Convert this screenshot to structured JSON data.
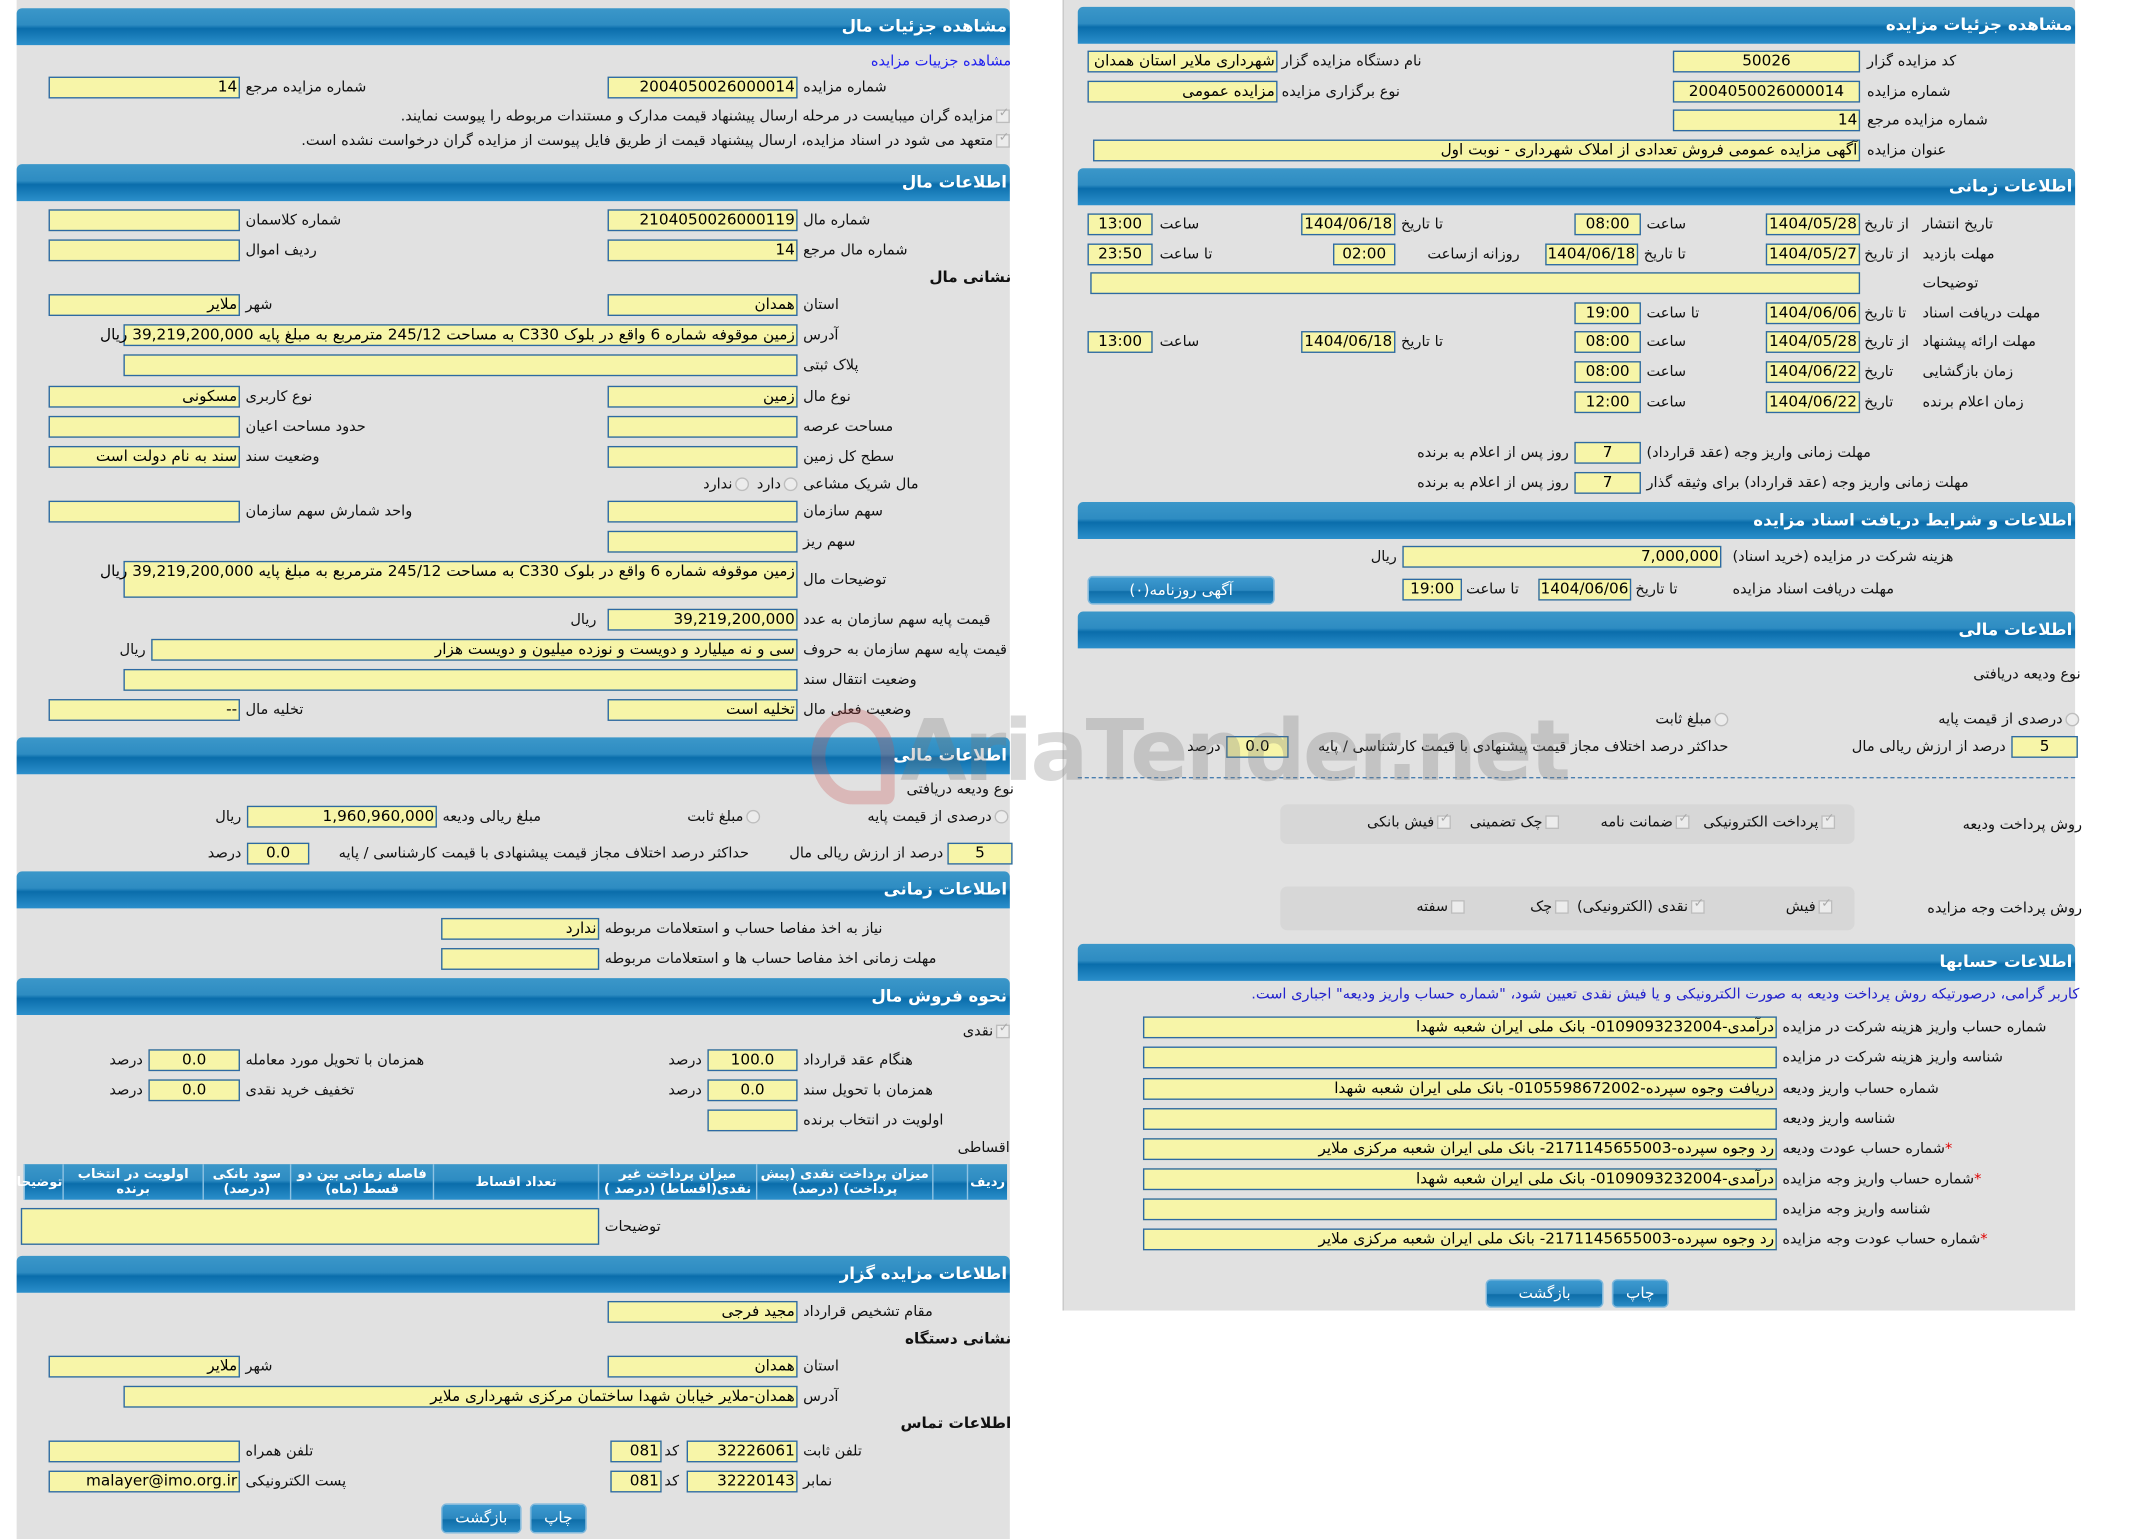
{
  "brand_watermark": "AriaTender.net",
  "colors": {
    "header": "#1a7fbf",
    "field": "#f7f5a8",
    "panel": "#e1e1e1",
    "link": "#2222ee",
    "required": "#e00000"
  },
  "left": {
    "title": "مشاهده جزئیات مال",
    "auction_link": "مشاهده جزییات مزایده",
    "header": {
      "auction_no": {
        "label": "شماره مزایده",
        "value": "2004050026000014"
      },
      "ref_no": {
        "label": "شماره مزایده مرجع",
        "value": "14"
      },
      "note1": "مزایده گران میبایست در مرحله ارسال پیشنهاد قیمت مدارک و مستندات مربوطه را پیوست نمایند.",
      "note2": "متعهد می شود در اسناد مزایده، ارسال پیشنهاد قیمت از طریق فایل پیوست از مزایده گران درخواست نشده است."
    },
    "property": {
      "title": "اطلاعات مال",
      "number": {
        "label": "شماره مال",
        "value": "2104050026000119"
      },
      "class_no": {
        "label": "شماره کلاسمان",
        "value": ""
      },
      "ref_number": {
        "label": "شماره مال مرجع",
        "value": "14"
      },
      "asset_row": {
        "label": "ردیف اموال",
        "value": ""
      },
      "address_heading": "نشانی مال",
      "province": {
        "label": "استان",
        "value": "همدان"
      },
      "city": {
        "label": "شهر",
        "value": "ملایر"
      },
      "address": {
        "label": "آدرس",
        "value": "زمین موقوفه شماره 6 واقع در بلوک C330 به مساحت 245/12 مترمربع به مبلغ پایه 39,219,200,000 ریال"
      },
      "plaque": {
        "label": "پلاک ثبتی",
        "value": ""
      },
      "kind": {
        "label": "نوع مال",
        "value": "زمین"
      },
      "usage": {
        "label": "نوع کاربری",
        "value": "مسکونی"
      },
      "area": {
        "label": "مساحت عرصه",
        "value": ""
      },
      "building_area": {
        "label": "حدود مساحت اعیان",
        "value": ""
      },
      "land_area": {
        "label": "سطح کل زمین",
        "value": ""
      },
      "deed_status": {
        "label": "وضعیت سند",
        "value": "سند به نام دولت است"
      },
      "shared": {
        "label": "مال شریک مشاعی",
        "yes": "دارد",
        "no": "ندارد"
      },
      "share": {
        "label": "سهم سازمان",
        "value": ""
      },
      "share_unit": {
        "label": "واحد شمارش سهم سازمان",
        "value": ""
      },
      "sub_share": {
        "label": "سهم ریز",
        "value": ""
      },
      "desc": {
        "label": "توضیحات مال",
        "value": "زمین موقوفه شماره 6 واقع در بلوک C330 به مساحت 245/12 مترمربع به مبلغ پایه 39,219,200,000 ریال"
      },
      "price_num": {
        "label": "قیمت پایه سهم سازمان به عدد",
        "value": "39,219,200,000"
      },
      "price_words": {
        "label": "قیمت پایه سهم سازمان به حروف",
        "value": "سی و نه میلیارد و دویست و نوزده میلیون و دویست هزار"
      },
      "currency": "ریال",
      "transfer": {
        "label": "وضعیت انتقال سند",
        "value": ""
      },
      "current_status": {
        "label": "وضعیت فعلی مال",
        "value": "تخلیه است"
      },
      "evacuation": {
        "label": "تخلیه مال",
        "value": "--"
      }
    },
    "finance": {
      "title": "اطلاعات مالی",
      "deposit_type": "نوع ودیعه دریافتی",
      "opt_percent": "درصدی از قیمت پایه",
      "opt_fixed": "مبلغ ثابت",
      "deposit_amount": {
        "label": "مبلغ ریالی ودیعه",
        "value": "1,960,960,000"
      },
      "currency": "ریال",
      "percent": "5",
      "percent_label": "درصد از ارزش ریالی مال",
      "max_diff_label": "حداکثر درصد اختلاف مجاز قیمت پیشنهادی با قیمت کارشناسی / پایه",
      "max_diff": "0.0",
      "percent_unit": "درصد"
    },
    "timing": {
      "title": "اطلاعات زمانی",
      "clearance": {
        "label": "نیاز به اخذ مفاصا حساب و استعلامات مربوطه",
        "value": "ندارد"
      },
      "clearance_deadline": {
        "label": "مهلت زمانی اخذ مفاصا حساب ها و استعلامات مربوطه",
        "value": ""
      }
    },
    "sale": {
      "title": "نحوه فروش مال",
      "cash": "نقدی",
      "percent_unit": "درصد",
      "on_contract": {
        "label": "هنگام عقد قرارداد",
        "value": "100.0"
      },
      "on_delivery": {
        "label": "همزمان با تحویل مورد معامله",
        "value": "0.0"
      },
      "on_deed": {
        "label": "همزمان با تحویل سند",
        "value": "0.0"
      },
      "cash_discount": {
        "label": "تخفیف خرید نقدی",
        "value": "0.0"
      },
      "priority": {
        "label": "اولویت در انتخاب برنده",
        "value": ""
      },
      "installments": "اقساطی",
      "table_columns": [
        "ردیف",
        "",
        "میزان پرداخت نقدی (پیش پرداخت) (درصد)",
        "میزان پرداخت غیر نقدی(اقساط) (درصد )",
        "تعداد اقساط",
        "فاصله زمانی بین دو قسط (ماه)",
        "سود بانکی (درصد)",
        "اولویت در انتخاب برنده",
        "توضیحات"
      ],
      "notes": {
        "label": "توضیحات",
        "value": ""
      }
    },
    "vendor": {
      "title": "اطلاعات مزایده گزار",
      "authority": {
        "label": "مقام تشخیص قرارداد",
        "value": "مجید فرجی"
      },
      "address_heading": "نشانی دستگاه",
      "province": {
        "label": "استان",
        "value": "همدان"
      },
      "city": {
        "label": "شهر",
        "value": "ملایر"
      },
      "address": {
        "label": "آدرس",
        "value": "همدان-ملایر خیابان شهدا ساختمان مرکزی شهرداری ملایر"
      },
      "contact_heading": "اطلاعات تماس",
      "code_label": "کد",
      "phone": {
        "label": "تلفن ثابت",
        "value": "32226061",
        "code": "081"
      },
      "mobile": {
        "label": "تلفن همراه",
        "value": ""
      },
      "fax": {
        "label": "نمابر",
        "value": "32220143",
        "code": "081"
      },
      "email": {
        "label": "پست الکترونیکی",
        "value": "malayer@imo.org.ir"
      }
    },
    "buttons": {
      "back": "بازگشت",
      "print": "چاپ"
    }
  },
  "right": {
    "title": "مشاهده جزئیات مزایده",
    "details": {
      "code": {
        "label": "کد مزایده گزار",
        "value": "50026"
      },
      "org": {
        "label": "نام دستگاه مزایده گزار",
        "value": "شهرداری ملایر استان همدان"
      },
      "num": {
        "label": "شماره مزایده",
        "value": "2004050026000014"
      },
      "type": {
        "label": "نوع برگزاری مزایده",
        "value": "مزایده عمومی"
      },
      "ref": {
        "label": "شماره مزایده مرجع",
        "value": "14"
      },
      "subject": {
        "label": "عنوان مزایده",
        "value": "آگهی مزایده عمومی فروش تعدادی از املاک شهرداری - نوبت اول"
      }
    },
    "timing": {
      "title": "اطلاعات زمانی",
      "from_date": "از تاریخ",
      "to_date": "تا تاریخ",
      "date": "تاریخ",
      "time": "ساعت",
      "to_time": "تا ساعت",
      "daily_from": "روزانه ازساعت",
      "notes": {
        "label": "توضیحات",
        "value": ""
      },
      "publish": {
        "label": "تاریخ انتشار",
        "from": "1404/05/28",
        "from_time": "08:00",
        "to": "1404/06/18",
        "to_time": "13:00"
      },
      "visit": {
        "label": "مهلت بازدید",
        "from": "1404/05/27",
        "to": "1404/06/18",
        "daily_from": "02:00",
        "to_time": "23:50"
      },
      "docs": {
        "label": "مهلت دریافت اسناد",
        "to": "1404/06/06",
        "to_time": "19:00"
      },
      "offer": {
        "label": "مهلت ارائه پیشنهاد",
        "from": "1404/05/28",
        "from_time": "08:00",
        "to": "1404/06/18",
        "to_time": "13:00"
      },
      "opening": {
        "label": "زمان بازگشایی",
        "date": "1404/06/22",
        "time": "08:00"
      },
      "winner": {
        "label": "زمان اعلام برنده",
        "date": "1404/06/22",
        "time": "12:00"
      },
      "pay": {
        "label": "مهلت زمانی واریز وجه (عقد قرارداد)",
        "days": "7"
      },
      "pay_guarantor": {
        "label": "مهلت زمانی واریز وجه (عقد قرارداد) برای وثیقه گذار",
        "days": "7"
      },
      "days_suffix": "روز پس از اعلام به برنده"
    },
    "docs": {
      "title": "اطلاعات و شرایط دریافت اسناد مزایده",
      "fee_label": "هزینه شرکت در مزایده (خرید اسناد)",
      "fee": "7,000,000",
      "currency": "ریال",
      "deadline_label": "مهلت دریافت اسناد مزایده",
      "to_date": "تا تاریخ",
      "date": "1404/06/06",
      "to_time": "تا ساعت",
      "time": "19:00",
      "ad_button": "آگهی روزنامه(۰)"
    },
    "finance": {
      "title": "اطلاعات مالی",
      "deposit_type": "نوع ودیعه دریافتی",
      "opt_percent": "درصدی از قیمت پایه",
      "opt_fixed": "مبلغ ثابت",
      "percent": "5",
      "percent_label": "درصد از ارزش ریالی مال",
      "max_diff_label": "حداکثر درصد اختلاف مجاز قیمت پیشنهادی با قیمت کارشناسی / پایه",
      "max_diff": "0.0",
      "percent_unit": "درصد",
      "deposit_methods_label": "روش پرداخت ودیعه",
      "deposit_methods": [
        {
          "label": "پرداخت الکترونیکی",
          "checked": true
        },
        {
          "label": "ضمانت نامه",
          "checked": true
        },
        {
          "label": "چک تضمینی",
          "checked": false
        },
        {
          "label": "فیش بانکی",
          "checked": true
        }
      ],
      "payment_methods_label": "روش پرداخت وجه مزایده",
      "payment_methods": [
        {
          "label": "فیش",
          "checked": true
        },
        {
          "label": "نقدی (الکترونیکی)",
          "checked": true
        },
        {
          "label": "چک",
          "checked": false
        },
        {
          "label": "سفته",
          "checked": false
        }
      ]
    },
    "accounts": {
      "title": "اطلاعات حسابها",
      "note": "کاربر گرامی، درصورتیکه روش پرداخت ودیعه به صورت الکترونیکی و یا فیش نقدی تعیین شود، \"شماره حساب واریز ودیعه\" اجباری است.",
      "rows": [
        {
          "label": "شماره حساب واریز هزینه شرکت در مزایده",
          "value": "درآمدی-0109093232004- بانک ملی ایران شعبه شهدا",
          "required": false
        },
        {
          "label": "شناسه واریز هزینه شرکت در مزایده",
          "value": "",
          "required": false
        },
        {
          "label": "شماره حساب واریز ودیعه",
          "value": "دریافت وجوه سپرده-0105598672002- بانک ملی ایران شعبه شهدا",
          "required": false
        },
        {
          "label": "شناسه واریز ودیعه",
          "value": "",
          "required": false
        },
        {
          "label": "شماره حساب عودت ودیعه",
          "value": "رد وجوه سپرده-2171145655003- بانک ملی ایران شعبه مرکزی ملایر",
          "required": true
        },
        {
          "label": "شماره حساب واریز وجه مزایده",
          "value": "درآمدی-0109093232004- بانک ملی ایران شعبه شهدا",
          "required": true
        },
        {
          "label": "شناسه واریز وجه مزایده",
          "value": "",
          "required": false
        },
        {
          "label": "شماره حساب عودت وجه مزایده",
          "value": "رد وجوه سپرده-2171145655003- بانک ملی ایران شعبه مرکزی ملایر",
          "required": true
        }
      ]
    },
    "buttons": {
      "back": "بازگشت",
      "print": "چاپ"
    }
  }
}
